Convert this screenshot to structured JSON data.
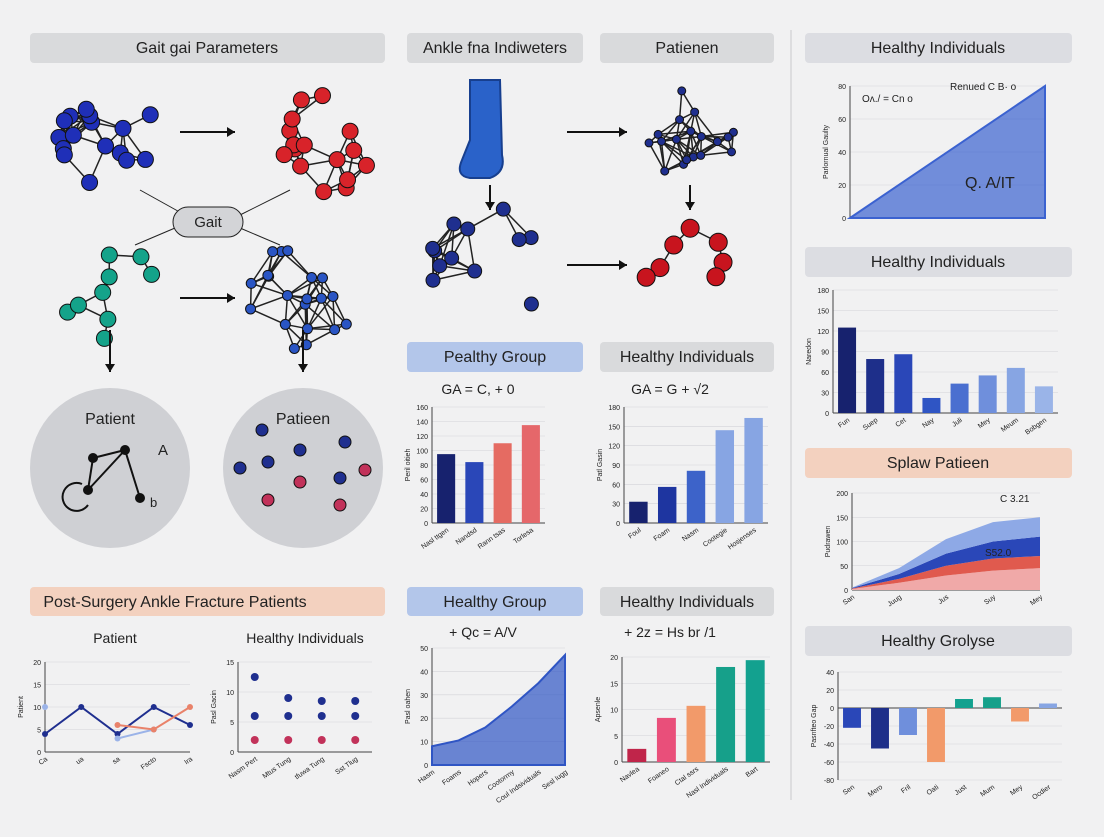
{
  "labels": {
    "gait_parameters": "Gait gai Parameters",
    "ankle": "Ankle fna Indiweters",
    "patienen": "Patienen",
    "pealthy_group": "Pealthy Group",
    "healthy_individuals_mid1": "Healthy Individuals",
    "post_surgery": "Post-Surgery Ankle Fracture Patients",
    "healthy_group": "Healthy Group",
    "healthy_individuals_mid2": "Healthy Individuals",
    "healthy_individuals_r1": "Healthy Individuals",
    "healthy_individuals_r2": "Healthy Individuals",
    "splaw": "Splaw Patieen",
    "grolyse": "Healthy Grolyse",
    "gait": "Gait",
    "patient": "Patient",
    "patieen": "Patieen",
    "a": "A",
    "b": "b"
  },
  "chart_data": [
    {
      "type": "line",
      "title": "Patient",
      "ylabel": "Patient",
      "categories": [
        "Ca",
        "ua",
        "sa",
        "Fscto",
        "Ira"
      ],
      "ylim": [
        0,
        20
      ],
      "yticks": [
        0,
        5,
        10,
        15,
        20
      ],
      "series": [
        {
          "color": "#1f2f8f",
          "values": [
            4,
            10,
            4,
            10,
            6
          ]
        },
        {
          "color": "#9bb3e8",
          "values": [
            10,
            null,
            3,
            5,
            null
          ]
        },
        {
          "color": "#e9826a",
          "values": [
            null,
            null,
            6,
            5,
            10
          ]
        }
      ]
    },
    {
      "type": "scatter",
      "title": "Healthy Individuals",
      "ylabel": "Pasl Gacin",
      "categories": [
        "Nasm Pert",
        "Mtus Tung",
        "tfuwa Tung",
        "Sst Tlug"
      ],
      "ylim": [
        0,
        15
      ],
      "yticks": [
        0,
        5,
        10,
        15
      ],
      "series": [
        {
          "color": "#1f2f8f",
          "values": [
            12.5,
            9,
            8.5,
            8.5
          ]
        },
        {
          "color": "#1f2f8f",
          "values": [
            6,
            6,
            6,
            6
          ]
        },
        {
          "color": "#c2325a",
          "values": [
            2,
            2,
            2,
            2
          ]
        }
      ]
    },
    {
      "type": "bar",
      "title": "GA = C, + 0",
      "ylabel": "Peril oitieh",
      "categories": [
        "Nasl ttgen",
        "Nandsd",
        "Rann tsas",
        "Torlesa"
      ],
      "values": [
        95,
        84,
        110,
        135
      ],
      "colors": [
        "#17226e",
        "#2a47b8",
        "#e56b62",
        "#e5676a"
      ],
      "ylim": [
        0,
        160
      ],
      "yticks": [
        0,
        20,
        40,
        60,
        80,
        100,
        120,
        140,
        160
      ]
    },
    {
      "type": "bar",
      "title": "GA = G + √2",
      "ylabel": "Patl Gasin",
      "categories": [
        "Foul",
        "Foam",
        "Nasm",
        "Cootegie",
        "Hosjenses"
      ],
      "values": [
        33,
        56,
        81,
        144,
        163
      ],
      "colors": [
        "#17226e",
        "#1e35a0",
        "#3d63c9",
        "#87a5e3",
        "#87a5e3"
      ],
      "ylim": [
        0,
        180
      ],
      "yticks": [
        0,
        30,
        60,
        90,
        120,
        150,
        180
      ]
    },
    {
      "type": "area",
      "title": "+ Qc = A/V",
      "ylabel": "Pasl oahen",
      "categories": [
        "Hasm",
        "Foams",
        "Hopers",
        "Cootorrny",
        "Coul Indsividuals",
        "Sesl Iugg"
      ],
      "ylim": [
        0,
        50
      ],
      "yticks": [
        0,
        10,
        20,
        30,
        40,
        50
      ],
      "series": [
        {
          "color": "#2f55c4",
          "values": [
            8,
            10.5,
            16,
            25,
            35,
            47
          ]
        }
      ]
    },
    {
      "type": "bar",
      "title": "+ 2z = Hs br /1",
      "ylabel": "Apsenle",
      "categories": [
        "Navlea",
        "Foaneo",
        "Ctal ssrs",
        "Nasl Individuals",
        "Bart"
      ],
      "values": [
        2.5,
        8.4,
        10.7,
        18.1,
        19.4
      ],
      "colors": [
        "#c0254a",
        "#e94f7a",
        "#f29a6a",
        "#16a08a",
        "#13a18f"
      ],
      "ylim": [
        0,
        20
      ],
      "yticks": [
        0,
        5,
        10,
        15,
        20
      ]
    },
    {
      "type": "area",
      "ylabel": "Parlornual Gaulty",
      "categories": [
        null,
        null,
        null,
        null,
        null,
        null
      ],
      "ylim": [
        0,
        80
      ],
      "yticks": [
        0,
        20,
        40,
        60,
        80
      ],
      "annotations": [
        "Oʌ./ = Cn o",
        "Renued C B· o",
        "Q. A/IT"
      ],
      "series": [
        {
          "color": "#3b62d0",
          "values": [
            0,
            16,
            32,
            48,
            64,
            80
          ]
        }
      ]
    },
    {
      "type": "bar",
      "ylabel": "Naredon",
      "categories": [
        "Fun",
        "Suep",
        "Cet",
        "Nay",
        "Juli",
        "Mey",
        "Meum",
        "Bobgen"
      ],
      "values": [
        125,
        79,
        86,
        22,
        43,
        55,
        66,
        39
      ],
      "colors": [
        "#17226e",
        "#1e2f8a",
        "#2a47b8",
        "#2f55c4",
        "#4a6fd0",
        "#6f8fdc",
        "#87a5e3",
        "#9ab4e8"
      ],
      "ylim": [
        0,
        180
      ],
      "yticks": [
        0,
        30,
        60,
        90,
        120,
        150,
        180
      ]
    },
    {
      "type": "stacked_area",
      "ylabel": "Pudrawen",
      "categories": [
        "San",
        "Juug",
        "Jus",
        "Suy",
        "Mey"
      ],
      "ylim": [
        0,
        200
      ],
      "yticks": [
        0,
        50,
        100,
        150,
        200
      ],
      "annotations": [
        "C 3.21",
        "S52.0"
      ],
      "series": [
        {
          "color": "#f0a9a8",
          "values": [
            2,
            15,
            30,
            40,
            45
          ]
        },
        {
          "color": "#e05a4e",
          "values": [
            1,
            8,
            20,
            25,
            25
          ]
        },
        {
          "color": "#2a47b8",
          "values": [
            1,
            10,
            25,
            35,
            40
          ]
        },
        {
          "color": "#8ea9e6",
          "values": [
            1,
            12,
            30,
            40,
            40
          ]
        }
      ]
    },
    {
      "type": "bar",
      "ylabel": "Pasnfteo Gap",
      "categories": [
        "Sen",
        "Mero",
        "Fril",
        "Oati",
        "Just",
        "Mum",
        "Mey",
        "Ocdier"
      ],
      "values": [
        -22,
        -45,
        -30,
        -60,
        10,
        12,
        -15,
        5
      ],
      "colors": [
        "#2a47b8",
        "#1e2f8a",
        "#6f8fdc",
        "#f29a6a",
        "#13a18f",
        "#16a08a",
        "#f29a6a",
        "#87a5e3"
      ],
      "ylim": [
        -80,
        40
      ],
      "yticks": [
        -80,
        -60,
        -40,
        -20,
        0,
        20,
        40
      ]
    }
  ]
}
